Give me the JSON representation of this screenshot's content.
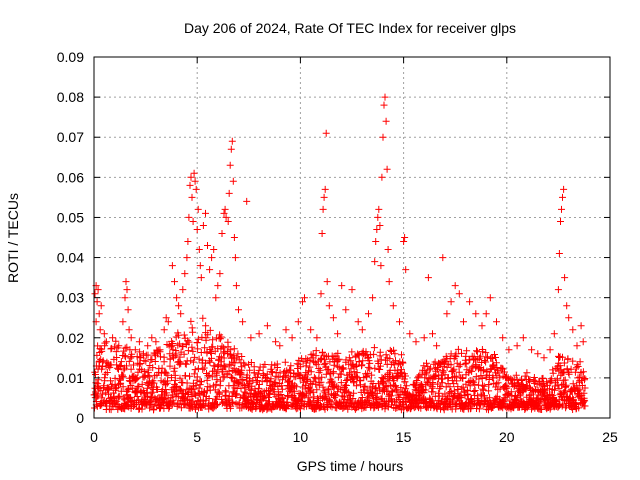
{
  "chart_data": {
    "type": "scatter",
    "title": "Day 206 of 2024, Rate Of TEC Index for receiver glps",
    "xlabel": "GPS time / hours",
    "ylabel": "ROTI / TECUs",
    "xlim": [
      0,
      25
    ],
    "ylim": [
      0,
      0.09
    ],
    "xticks": [
      0,
      5,
      10,
      15,
      20,
      25
    ],
    "xtick_labels": [
      "0",
      "5",
      "10",
      "15",
      "20",
      "25"
    ],
    "yticks": [
      0,
      0.01,
      0.02,
      0.03,
      0.04,
      0.05,
      0.06,
      0.07,
      0.08,
      0.09
    ],
    "ytick_labels": [
      "0",
      "0.01",
      "0.02",
      "0.03",
      "0.04",
      "0.05",
      "0.06",
      "0.07",
      "0.08",
      "0.09"
    ],
    "grid": true,
    "marker": "plus",
    "marker_color": "#ff0000",
    "series": [
      {
        "name": "",
        "points": [
          [
            0.05,
            0.031
          ],
          [
            0.1,
            0.033
          ],
          [
            0.15,
            0.029
          ],
          [
            0.2,
            0.032
          ],
          [
            0.25,
            0.026
          ],
          [
            0.3,
            0.022
          ],
          [
            0.35,
            0.028
          ],
          [
            0.1,
            0.024
          ],
          [
            0.5,
            0.021
          ],
          [
            0.6,
            0.019
          ],
          [
            0.9,
            0.02
          ],
          [
            1.2,
            0.018
          ],
          [
            1.4,
            0.024
          ],
          [
            1.5,
            0.03
          ],
          [
            1.55,
            0.034
          ],
          [
            1.6,
            0.032
          ],
          [
            1.65,
            0.027
          ],
          [
            1.7,
            0.022
          ],
          [
            1.8,
            0.02
          ],
          [
            2.0,
            0.017
          ],
          [
            2.2,
            0.019
          ],
          [
            2.4,
            0.016
          ],
          [
            2.6,
            0.018
          ],
          [
            2.8,
            0.02
          ],
          [
            3.0,
            0.019
          ],
          [
            3.2,
            0.017
          ],
          [
            3.4,
            0.022
          ],
          [
            3.5,
            0.025
          ],
          [
            3.6,
            0.024
          ],
          [
            3.8,
            0.038
          ],
          [
            3.9,
            0.034
          ],
          [
            4.0,
            0.03
          ],
          [
            4.1,
            0.028
          ],
          [
            4.2,
            0.026
          ],
          [
            4.3,
            0.032
          ],
          [
            4.4,
            0.036
          ],
          [
            4.5,
            0.04
          ],
          [
            4.55,
            0.044
          ],
          [
            4.6,
            0.05
          ],
          [
            4.65,
            0.058
          ],
          [
            4.7,
            0.06
          ],
          [
            4.75,
            0.055
          ],
          [
            4.8,
            0.049
          ],
          [
            4.85,
            0.061
          ],
          [
            4.9,
            0.059
          ],
          [
            4.95,
            0.057
          ],
          [
            5.0,
            0.047
          ],
          [
            5.05,
            0.052
          ],
          [
            5.1,
            0.042
          ],
          [
            5.15,
            0.038
          ],
          [
            5.2,
            0.035
          ],
          [
            5.3,
            0.048
          ],
          [
            5.4,
            0.051
          ],
          [
            5.5,
            0.043
          ],
          [
            5.6,
            0.037
          ],
          [
            5.7,
            0.04
          ],
          [
            5.8,
            0.042
          ],
          [
            5.9,
            0.03
          ],
          [
            6.0,
            0.033
          ],
          [
            6.1,
            0.036
          ],
          [
            6.2,
            0.046
          ],
          [
            6.3,
            0.051
          ],
          [
            6.35,
            0.052
          ],
          [
            6.4,
            0.05
          ],
          [
            6.5,
            0.049
          ],
          [
            6.55,
            0.056
          ],
          [
            6.6,
            0.063
          ],
          [
            6.65,
            0.067
          ],
          [
            6.7,
            0.069
          ],
          [
            6.75,
            0.059
          ],
          [
            6.8,
            0.045
          ],
          [
            6.85,
            0.04
          ],
          [
            6.9,
            0.033
          ],
          [
            7.0,
            0.027
          ],
          [
            7.2,
            0.024
          ],
          [
            7.4,
            0.054
          ],
          [
            7.6,
            0.02
          ],
          [
            8.0,
            0.021
          ],
          [
            8.4,
            0.023
          ],
          [
            8.8,
            0.019
          ],
          [
            9.0,
            0.018
          ],
          [
            9.3,
            0.022
          ],
          [
            9.6,
            0.02
          ],
          [
            9.9,
            0.024
          ],
          [
            10.1,
            0.029
          ],
          [
            10.2,
            0.03
          ],
          [
            10.5,
            0.022
          ],
          [
            10.8,
            0.02
          ],
          [
            11.0,
            0.031
          ],
          [
            11.05,
            0.046
          ],
          [
            11.1,
            0.052
          ],
          [
            11.15,
            0.055
          ],
          [
            11.2,
            0.057
          ],
          [
            11.25,
            0.071
          ],
          [
            11.3,
            0.034
          ],
          [
            11.4,
            0.028
          ],
          [
            11.6,
            0.025
          ],
          [
            11.8,
            0.021
          ],
          [
            12.0,
            0.033
          ],
          [
            12.2,
            0.027
          ],
          [
            12.5,
            0.032
          ],
          [
            12.8,
            0.024
          ],
          [
            13.0,
            0.022
          ],
          [
            13.3,
            0.026
          ],
          [
            13.5,
            0.03
          ],
          [
            13.6,
            0.039
          ],
          [
            13.65,
            0.044
          ],
          [
            13.7,
            0.047
          ],
          [
            13.75,
            0.05
          ],
          [
            13.8,
            0.052
          ],
          [
            13.85,
            0.048
          ],
          [
            13.9,
            0.038
          ],
          [
            13.95,
            0.06
          ],
          [
            14.0,
            0.07
          ],
          [
            14.05,
            0.078
          ],
          [
            14.1,
            0.08
          ],
          [
            14.15,
            0.074
          ],
          [
            14.2,
            0.062
          ],
          [
            14.25,
            0.042
          ],
          [
            14.3,
            0.034
          ],
          [
            14.5,
            0.028
          ],
          [
            14.8,
            0.024
          ],
          [
            15.0,
            0.044
          ],
          [
            15.05,
            0.045
          ],
          [
            15.1,
            0.037
          ],
          [
            15.3,
            0.021
          ],
          [
            15.6,
            0.019
          ],
          [
            16.0,
            0.02
          ],
          [
            16.2,
            0.035
          ],
          [
            16.4,
            0.021
          ],
          [
            16.6,
            0.018
          ],
          [
            16.9,
            0.04
          ],
          [
            17.1,
            0.026
          ],
          [
            17.3,
            0.029
          ],
          [
            17.5,
            0.033
          ],
          [
            17.7,
            0.031
          ],
          [
            17.9,
            0.024
          ],
          [
            18.2,
            0.029
          ],
          [
            18.5,
            0.026
          ],
          [
            18.8,
            0.023
          ],
          [
            19.0,
            0.026
          ],
          [
            19.2,
            0.03
          ],
          [
            19.5,
            0.024
          ],
          [
            19.8,
            0.02
          ],
          [
            20.1,
            0.017
          ],
          [
            20.5,
            0.018
          ],
          [
            20.8,
            0.02
          ],
          [
            21.2,
            0.017
          ],
          [
            21.5,
            0.016
          ],
          [
            21.8,
            0.015
          ],
          [
            22.1,
            0.017
          ],
          [
            22.3,
            0.021
          ],
          [
            22.5,
            0.032
          ],
          [
            22.55,
            0.041
          ],
          [
            22.6,
            0.049
          ],
          [
            22.65,
            0.052
          ],
          [
            22.7,
            0.055
          ],
          [
            22.75,
            0.057
          ],
          [
            22.8,
            0.035
          ],
          [
            22.9,
            0.028
          ],
          [
            23.0,
            0.025
          ],
          [
            23.2,
            0.022
          ],
          [
            23.4,
            0.018
          ],
          [
            23.6,
            0.023
          ],
          [
            23.7,
            0.019
          ]
        ],
        "band": {
          "x_start": 0.0,
          "x_end": 23.8,
          "x_step": 0.03,
          "y_base": 0.0025,
          "envelope_x": [
            0,
            1,
            2,
            3,
            3.8,
            4.5,
            5,
            5.5,
            6,
            6.5,
            7,
            7.5,
            8,
            9,
            10,
            11,
            12,
            13,
            14,
            15,
            15.2,
            16,
            17,
            18,
            19,
            19.6,
            20,
            21,
            22,
            22.5,
            23,
            23.8
          ],
          "envelope_y": [
            0.018,
            0.02,
            0.016,
            0.017,
            0.02,
            0.023,
            0.026,
            0.024,
            0.021,
            0.02,
            0.016,
            0.014,
            0.013,
            0.014,
            0.015,
            0.017,
            0.016,
            0.017,
            0.018,
            0.016,
            0.006,
            0.013,
            0.016,
            0.017,
            0.017,
            0.016,
            0.01,
            0.011,
            0.01,
            0.016,
            0.015,
            0.013
          ]
        }
      }
    ]
  }
}
